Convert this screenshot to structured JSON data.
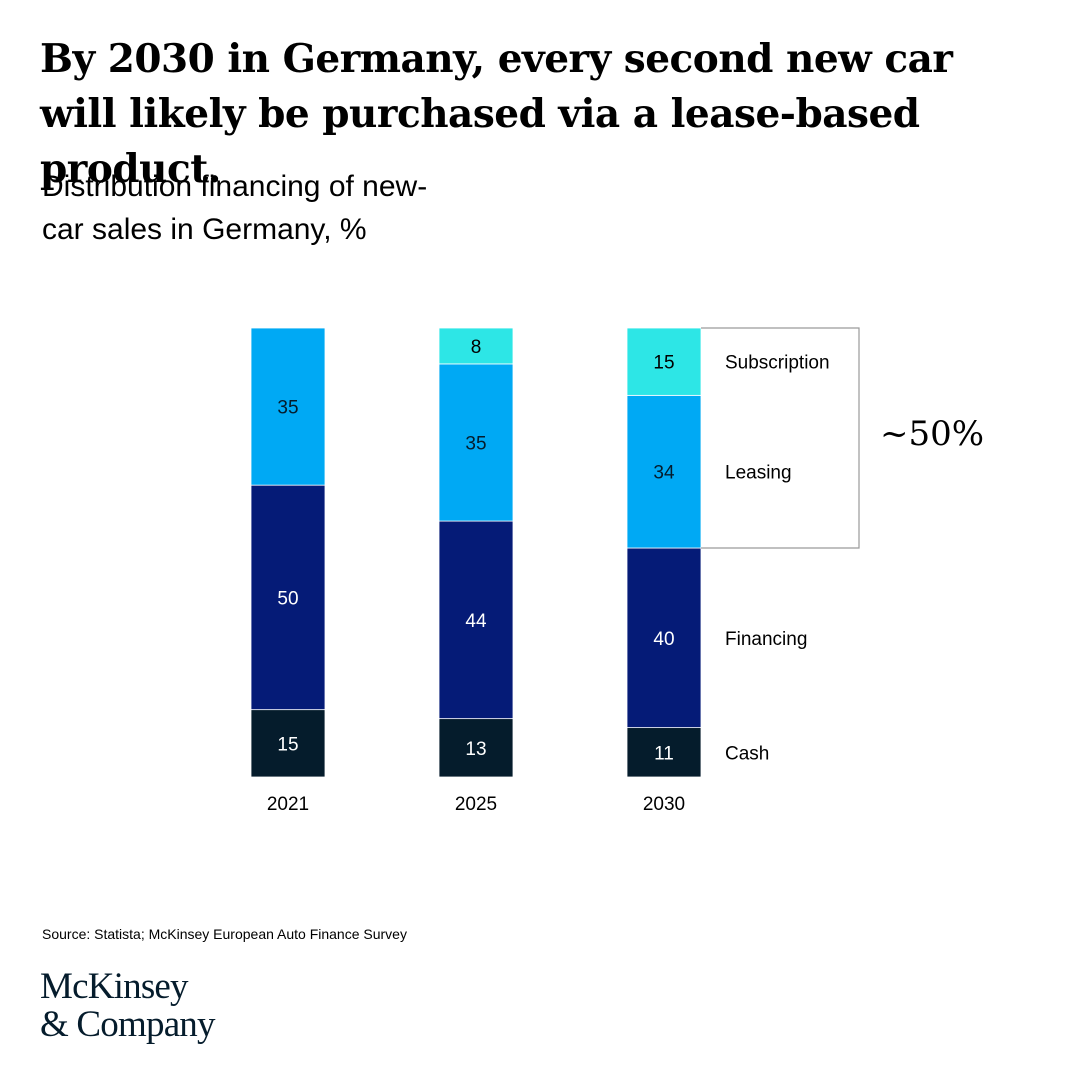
{
  "headline": "By 2030 in Germany, every second new car will likely be purchased via a lease-based product.",
  "subtitle": "Distribution financing of new-car sales in Germany,",
  "unit": "%",
  "source": "Source: Statista; McKinsey European Auto Finance Survey",
  "brand": {
    "line1": "McKinsey",
    "line2": "& Company"
  },
  "chart_data": {
    "type": "bar",
    "stacked": true,
    "title": "Distribution financing of new-car sales in Germany, %",
    "categories": [
      "2021",
      "2025",
      "2030"
    ],
    "series": [
      {
        "name": "Cash",
        "values": [
          15,
          13,
          11
        ],
        "color": "#051c2c"
      },
      {
        "name": "Financing",
        "values": [
          50,
          44,
          40
        ],
        "color": "#051b77"
      },
      {
        "name": "Leasing",
        "values": [
          35,
          35,
          34
        ],
        "color": "#00a9f4"
      },
      {
        "name": "Subscription",
        "values": [
          0,
          8,
          15
        ],
        "color": "#2de6e6"
      }
    ],
    "ylim": [
      0,
      100
    ],
    "grid": false,
    "legend": "right of last bar",
    "annotation": {
      "text": "~50%",
      "spans_series": [
        "Subscription",
        "Leasing"
      ],
      "category": "2030"
    }
  }
}
